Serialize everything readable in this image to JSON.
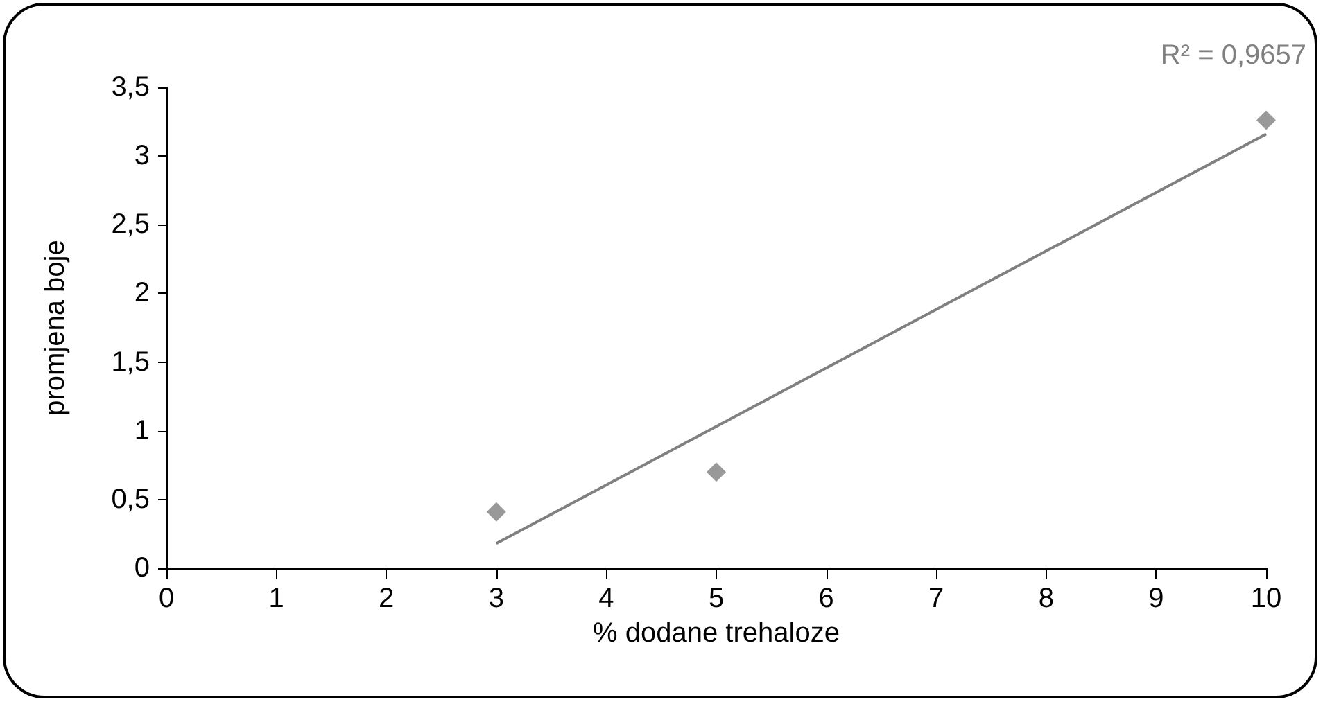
{
  "chart_data": {
    "type": "scatter",
    "xlabel": "% dodane trehaloze",
    "ylabel": "promjena boje",
    "annotations": [
      "R² = 0,9657"
    ],
    "x": [
      3,
      5,
      10
    ],
    "series": [
      {
        "color": "#808080",
        "values": [
          0.41,
          0.7,
          3.26
        ],
        "marker": "diamond"
      },
      {
        "type": "line",
        "color": "#808080",
        "x": [
          3,
          10
        ],
        "values": [
          0.18,
          3.16
        ],
        "marker": "none",
        "line_style": "solid"
      }
    ],
    "xlim": [
      0,
      10
    ],
    "xticks": [
      0,
      1,
      2,
      3,
      4,
      5,
      6,
      7,
      8,
      9,
      10
    ],
    "ylim": [
      0,
      3.5
    ],
    "yticks": [
      0,
      {
        "value": 0.5,
        "label": "0,5"
      },
      1,
      {
        "value": 1.5,
        "label": "1,5"
      },
      2,
      {
        "value": 2.5,
        "label": "2,5"
      },
      3,
      {
        "value": 3.5,
        "label": "3,5"
      }
    ],
    "grid": false
  }
}
